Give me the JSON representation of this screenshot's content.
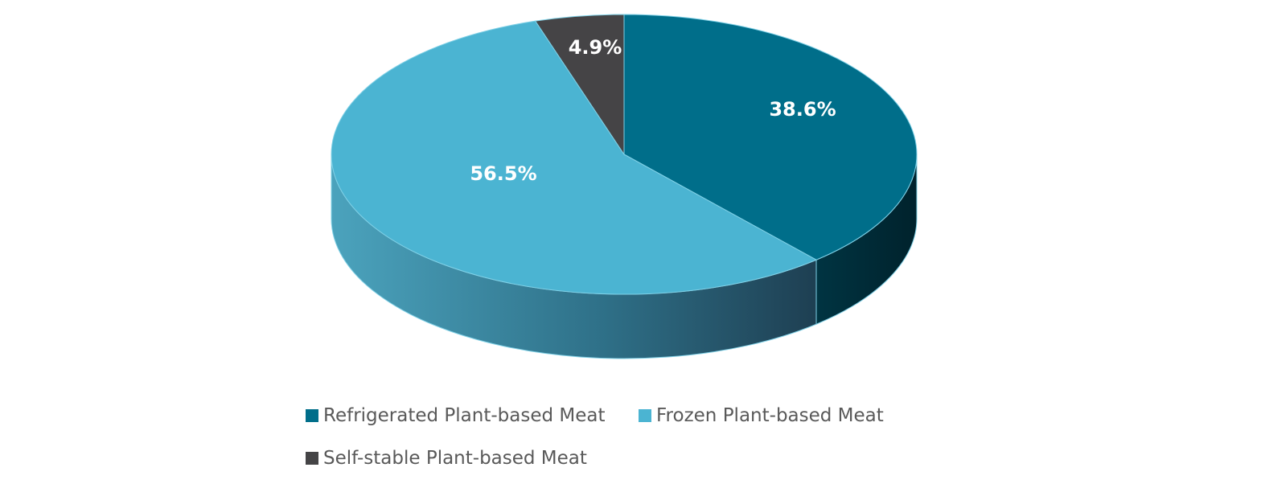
{
  "chart_data": {
    "type": "pie",
    "style": "3d",
    "slices": [
      {
        "name": "Refrigerated Plant-based Meat",
        "value": 38.6,
        "label": "38.6%",
        "color": "#006E8A"
      },
      {
        "name": "Frozen Plant-based Meat",
        "value": 56.5,
        "label": "56.5%",
        "color": "#4BB4D2"
      },
      {
        "name": "Self-stable Plant-based Meat",
        "value": 4.9,
        "label": "4.9%",
        "color": "#454446"
      }
    ],
    "legend_position": "bottom"
  }
}
